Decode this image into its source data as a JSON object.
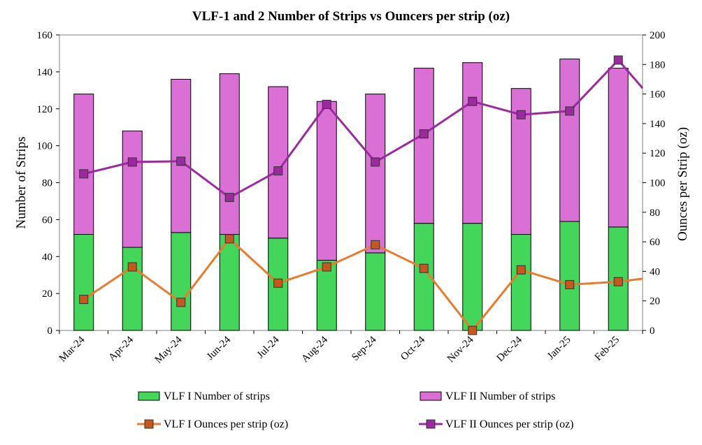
{
  "chart_data": {
    "type": "bar",
    "title": "VLF-1 and 2 Number of Strips vs Ouncers per strip (oz)",
    "ylabel": "Number of Strips",
    "y2label": "Ounces per Strip (oz)",
    "ylim": [
      0,
      160
    ],
    "y2lim": [
      0,
      200
    ],
    "yticks": [
      0,
      20,
      40,
      60,
      80,
      100,
      120,
      140,
      160
    ],
    "y2ticks": [
      0,
      20,
      40,
      60,
      80,
      100,
      120,
      140,
      160,
      180,
      200
    ],
    "categories": [
      "Mar-24",
      "Apr-24",
      "May-24",
      "Jun-24",
      "Jul-24",
      "Aug-24",
      "Sep-24",
      "Oct-24",
      "Nov-24",
      "Dec-24",
      "Jan-25",
      "Feb-25"
    ],
    "stacked_bars": [
      {
        "name": "VLF I Number of strips",
        "color": "#44d65a",
        "values": [
          52,
          45,
          53,
          52,
          50,
          38,
          42,
          58,
          58,
          52,
          59,
          56
        ]
      },
      {
        "name": "VLF II Number of strips",
        "color": "#da70d6",
        "values": [
          76,
          63,
          83,
          87,
          82,
          86,
          86,
          84,
          87,
          79,
          88,
          86
        ]
      }
    ],
    "lines": [
      {
        "name": "VLF I Ounces per strip (oz)",
        "axis": "right",
        "color": "#e87b2e",
        "marker_color": "#c4581e",
        "values": [
          21,
          43,
          19,
          62,
          32,
          43,
          58,
          42,
          0,
          41,
          31,
          33
        ],
        "trailing_value": 35
      },
      {
        "name": "VLF II Ounces per strip (oz)",
        "axis": "right",
        "color": "#9a2a9e",
        "marker_color": "#9a2a9e",
        "values": [
          106,
          114,
          114.5,
          90,
          108,
          153,
          114,
          133,
          155,
          146,
          148.5,
          183
        ],
        "trailing_value": 164
      }
    ],
    "legend": [
      "VLF I Number of strips",
      "VLF II Number of strips",
      "VLF I Ounces per strip (oz)",
      "VLF II Ounces per strip (oz)"
    ],
    "legend_position": "bottom"
  }
}
